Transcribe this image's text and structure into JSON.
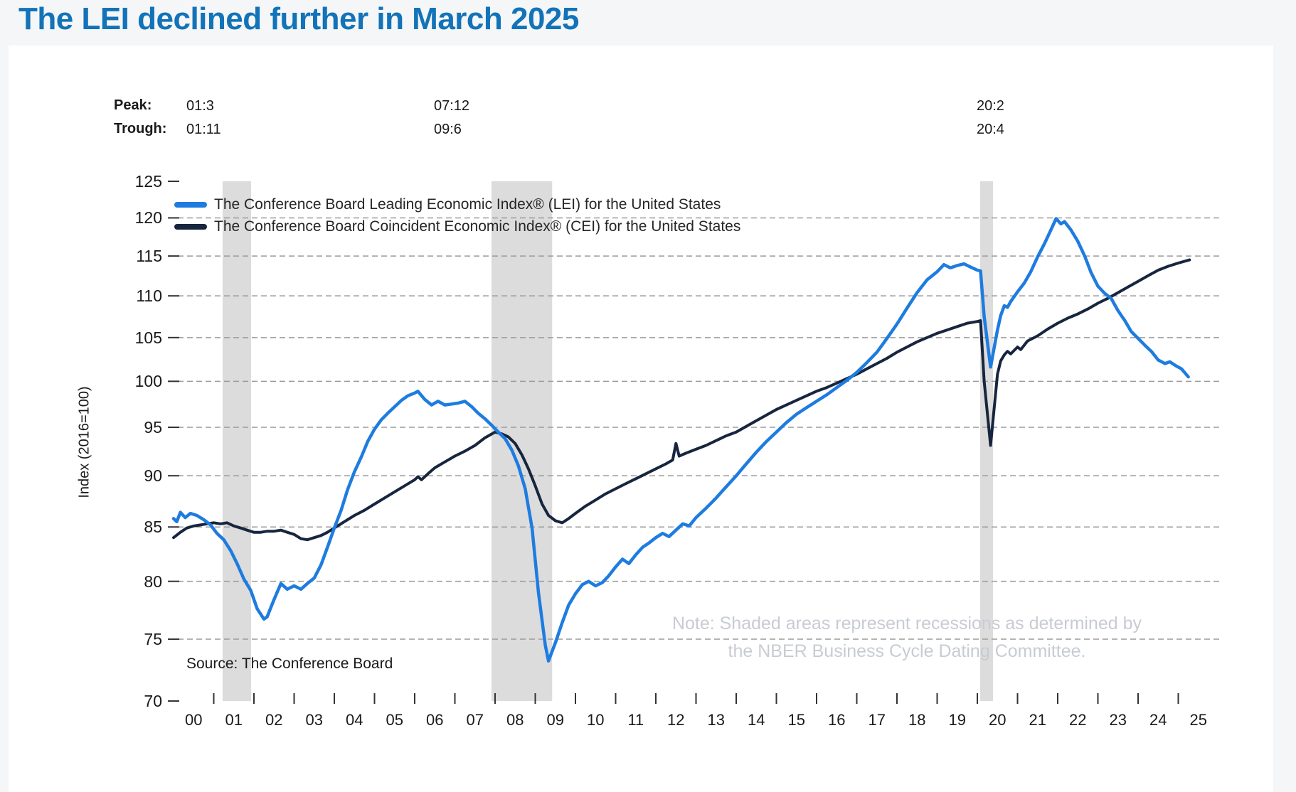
{
  "title": {
    "text": "The LEI declined further in March 2025"
  },
  "annotations": {
    "peak_label": "Peak:",
    "trough_label": "Trough:",
    "columns": [
      {
        "peak": "01:3",
        "trough": "01:11"
      },
      {
        "peak": "07:12",
        "trough": "09:6"
      },
      {
        "peak": "20:2",
        "trough": "20:4"
      }
    ]
  },
  "legend": [
    {
      "name": "lei",
      "label": "The Conference Board Leading Economic Index® (LEI) for the United States"
    },
    {
      "name": "cei",
      "label": "The Conference Board Coincident Economic Index® (CEI) for the United States"
    }
  ],
  "axis": {
    "y_title": "Index (2016=100)"
  },
  "source": {
    "text": "Source: The Conference Board"
  },
  "note": {
    "line1": "Note: Shaded areas represent recessions as determined by",
    "line2": "the NBER Business Cycle Dating Committee."
  },
  "colors": {
    "title": "#1273b8",
    "lei": "#1e7ce0",
    "cei": "#17263e",
    "recession_band": "#dcdcdc",
    "gridline": "#9b9b9b",
    "tick": "#333333",
    "note_text": "#c8ccd2"
  },
  "chart_data": {
    "type": "line",
    "x_label_unit": "year (2000-2025)",
    "ylim": [
      70,
      125
    ],
    "y_scale": "log",
    "grid": "dashed-horizontal",
    "legend_position": "top-left-inside",
    "y_ticks": [
      125,
      120,
      115,
      110,
      105,
      100,
      95,
      90,
      85,
      80,
      75,
      70
    ],
    "gridline_values": [
      120,
      115,
      110,
      105,
      100,
      95,
      90,
      85,
      80,
      75
    ],
    "x_tick_labels": [
      "00",
      "01",
      "02",
      "03",
      "04",
      "05",
      "06",
      "07",
      "08",
      "09",
      "10",
      "11",
      "12",
      "13",
      "14",
      "15",
      "16",
      "17",
      "18",
      "19",
      "20",
      "21",
      "22",
      "23",
      "24",
      "25"
    ],
    "recessions": [
      [
        2001.22,
        2001.93
      ],
      [
        2007.91,
        2009.42
      ],
      [
        2020.07,
        2020.39
      ]
    ],
    "series": [
      {
        "name": "CEI",
        "color_key": "cei",
        "points": [
          [
            2000.0,
            84.0
          ],
          [
            2000.17,
            84.5
          ],
          [
            2000.33,
            84.9
          ],
          [
            2000.5,
            85.1
          ],
          [
            2000.67,
            85.2
          ],
          [
            2000.83,
            85.3
          ],
          [
            2001.0,
            85.4
          ],
          [
            2001.17,
            85.3
          ],
          [
            2001.33,
            85.4
          ],
          [
            2001.5,
            85.1
          ],
          [
            2001.67,
            84.9
          ],
          [
            2001.83,
            84.7
          ],
          [
            2002.0,
            84.5
          ],
          [
            2002.17,
            84.5
          ],
          [
            2002.33,
            84.6
          ],
          [
            2002.5,
            84.6
          ],
          [
            2002.67,
            84.7
          ],
          [
            2002.83,
            84.5
          ],
          [
            2003.0,
            84.3
          ],
          [
            2003.17,
            83.9
          ],
          [
            2003.33,
            83.8
          ],
          [
            2003.5,
            84.0
          ],
          [
            2003.67,
            84.2
          ],
          [
            2003.83,
            84.5
          ],
          [
            2004.0,
            84.9
          ],
          [
            2004.25,
            85.5
          ],
          [
            2004.5,
            86.1
          ],
          [
            2004.75,
            86.6
          ],
          [
            2005.0,
            87.2
          ],
          [
            2005.25,
            87.8
          ],
          [
            2005.5,
            88.4
          ],
          [
            2005.75,
            89.0
          ],
          [
            2006.0,
            89.6
          ],
          [
            2006.08,
            89.9
          ],
          [
            2006.17,
            89.6
          ],
          [
            2006.33,
            90.2
          ],
          [
            2006.5,
            90.8
          ],
          [
            2006.75,
            91.4
          ],
          [
            2007.0,
            92.0
          ],
          [
            2007.25,
            92.5
          ],
          [
            2007.5,
            93.1
          ],
          [
            2007.75,
            93.9
          ],
          [
            2008.0,
            94.5
          ],
          [
            2008.17,
            94.3
          ],
          [
            2008.33,
            94.0
          ],
          [
            2008.5,
            93.3
          ],
          [
            2008.67,
            92.1
          ],
          [
            2008.83,
            90.7
          ],
          [
            2009.0,
            89.0
          ],
          [
            2009.17,
            87.2
          ],
          [
            2009.33,
            86.1
          ],
          [
            2009.5,
            85.6
          ],
          [
            2009.67,
            85.4
          ],
          [
            2009.83,
            85.8
          ],
          [
            2010.0,
            86.3
          ],
          [
            2010.25,
            87.0
          ],
          [
            2010.5,
            87.6
          ],
          [
            2010.75,
            88.2
          ],
          [
            2011.0,
            88.7
          ],
          [
            2011.25,
            89.2
          ],
          [
            2011.5,
            89.7
          ],
          [
            2011.75,
            90.2
          ],
          [
            2012.0,
            90.7
          ],
          [
            2012.25,
            91.2
          ],
          [
            2012.42,
            91.6
          ],
          [
            2012.5,
            93.3
          ],
          [
            2012.58,
            92.0
          ],
          [
            2012.75,
            92.3
          ],
          [
            2013.0,
            92.7
          ],
          [
            2013.25,
            93.1
          ],
          [
            2013.5,
            93.6
          ],
          [
            2013.75,
            94.1
          ],
          [
            2014.0,
            94.5
          ],
          [
            2014.25,
            95.1
          ],
          [
            2014.5,
            95.7
          ],
          [
            2014.75,
            96.3
          ],
          [
            2015.0,
            96.9
          ],
          [
            2015.25,
            97.4
          ],
          [
            2015.5,
            97.9
          ],
          [
            2015.75,
            98.4
          ],
          [
            2016.0,
            98.9
          ],
          [
            2016.25,
            99.3
          ],
          [
            2016.5,
            99.8
          ],
          [
            2016.75,
            100.3
          ],
          [
            2017.0,
            100.8
          ],
          [
            2017.25,
            101.4
          ],
          [
            2017.5,
            102.0
          ],
          [
            2017.75,
            102.6
          ],
          [
            2018.0,
            103.3
          ],
          [
            2018.25,
            103.9
          ],
          [
            2018.5,
            104.5
          ],
          [
            2018.75,
            105.0
          ],
          [
            2019.0,
            105.5
          ],
          [
            2019.25,
            105.9
          ],
          [
            2019.5,
            106.3
          ],
          [
            2019.75,
            106.7
          ],
          [
            2020.0,
            106.9
          ],
          [
            2020.08,
            107.0
          ],
          [
            2020.17,
            100.0
          ],
          [
            2020.33,
            93.1
          ],
          [
            2020.5,
            100.8
          ],
          [
            2020.58,
            102.3
          ],
          [
            2020.67,
            103.0
          ],
          [
            2020.75,
            103.4
          ],
          [
            2020.83,
            103.1
          ],
          [
            2021.0,
            103.9
          ],
          [
            2021.08,
            103.6
          ],
          [
            2021.25,
            104.6
          ],
          [
            2021.5,
            105.2
          ],
          [
            2021.75,
            106.0
          ],
          [
            2022.0,
            106.7
          ],
          [
            2022.25,
            107.3
          ],
          [
            2022.5,
            107.8
          ],
          [
            2022.75,
            108.4
          ],
          [
            2023.0,
            109.1
          ],
          [
            2023.25,
            109.7
          ],
          [
            2023.5,
            110.4
          ],
          [
            2023.75,
            111.1
          ],
          [
            2024.0,
            111.8
          ],
          [
            2024.25,
            112.5
          ],
          [
            2024.5,
            113.2
          ],
          [
            2024.75,
            113.7
          ],
          [
            2025.0,
            114.1
          ],
          [
            2025.28,
            114.5
          ]
        ]
      },
      {
        "name": "LEI",
        "color_key": "lei",
        "points": [
          [
            2000.0,
            85.8
          ],
          [
            2000.08,
            85.5
          ],
          [
            2000.17,
            86.4
          ],
          [
            2000.29,
            85.9
          ],
          [
            2000.42,
            86.3
          ],
          [
            2000.58,
            86.1
          ],
          [
            2000.75,
            85.7
          ],
          [
            2000.92,
            85.2
          ],
          [
            2001.08,
            84.4
          ],
          [
            2001.25,
            83.8
          ],
          [
            2001.42,
            82.8
          ],
          [
            2001.58,
            81.6
          ],
          [
            2001.75,
            80.2
          ],
          [
            2001.92,
            79.2
          ],
          [
            2002.08,
            77.6
          ],
          [
            2002.25,
            76.7
          ],
          [
            2002.33,
            76.9
          ],
          [
            2002.5,
            78.4
          ],
          [
            2002.67,
            79.8
          ],
          [
            2002.83,
            79.3
          ],
          [
            2003.0,
            79.6
          ],
          [
            2003.17,
            79.3
          ],
          [
            2003.33,
            79.8
          ],
          [
            2003.5,
            80.3
          ],
          [
            2003.67,
            81.5
          ],
          [
            2003.83,
            83.1
          ],
          [
            2004.0,
            84.9
          ],
          [
            2004.17,
            86.6
          ],
          [
            2004.33,
            88.6
          ],
          [
            2004.5,
            90.4
          ],
          [
            2004.67,
            91.9
          ],
          [
            2004.83,
            93.5
          ],
          [
            2005.0,
            94.8
          ],
          [
            2005.17,
            95.8
          ],
          [
            2005.33,
            96.5
          ],
          [
            2005.5,
            97.2
          ],
          [
            2005.67,
            97.9
          ],
          [
            2005.83,
            98.4
          ],
          [
            2006.0,
            98.7
          ],
          [
            2006.08,
            98.9
          ],
          [
            2006.25,
            98.0
          ],
          [
            2006.42,
            97.4
          ],
          [
            2006.58,
            97.8
          ],
          [
            2006.75,
            97.4
          ],
          [
            2006.92,
            97.5
          ],
          [
            2007.08,
            97.6
          ],
          [
            2007.25,
            97.8
          ],
          [
            2007.42,
            97.2
          ],
          [
            2007.58,
            96.5
          ],
          [
            2007.75,
            95.9
          ],
          [
            2007.92,
            95.2
          ],
          [
            2008.08,
            94.5
          ],
          [
            2008.25,
            93.8
          ],
          [
            2008.42,
            92.6
          ],
          [
            2008.58,
            91.0
          ],
          [
            2008.75,
            88.7
          ],
          [
            2008.92,
            84.9
          ],
          [
            2009.08,
            79.0
          ],
          [
            2009.25,
            74.5
          ],
          [
            2009.33,
            73.2
          ],
          [
            2009.5,
            74.7
          ],
          [
            2009.67,
            76.4
          ],
          [
            2009.83,
            77.9
          ],
          [
            2010.0,
            78.9
          ],
          [
            2010.17,
            79.7
          ],
          [
            2010.33,
            80.0
          ],
          [
            2010.5,
            79.6
          ],
          [
            2010.67,
            79.9
          ],
          [
            2010.83,
            80.5
          ],
          [
            2011.0,
            81.3
          ],
          [
            2011.17,
            82.0
          ],
          [
            2011.33,
            81.6
          ],
          [
            2011.5,
            82.4
          ],
          [
            2011.67,
            83.1
          ],
          [
            2011.83,
            83.5
          ],
          [
            2012.0,
            84.0
          ],
          [
            2012.17,
            84.4
          ],
          [
            2012.33,
            84.1
          ],
          [
            2012.5,
            84.7
          ],
          [
            2012.67,
            85.3
          ],
          [
            2012.83,
            85.1
          ],
          [
            2013.0,
            85.9
          ],
          [
            2013.25,
            86.8
          ],
          [
            2013.5,
            87.8
          ],
          [
            2013.75,
            88.9
          ],
          [
            2014.0,
            90.0
          ],
          [
            2014.25,
            91.2
          ],
          [
            2014.5,
            92.4
          ],
          [
            2014.75,
            93.5
          ],
          [
            2015.0,
            94.5
          ],
          [
            2015.25,
            95.5
          ],
          [
            2015.5,
            96.4
          ],
          [
            2015.75,
            97.1
          ],
          [
            2016.0,
            97.8
          ],
          [
            2016.25,
            98.5
          ],
          [
            2016.5,
            99.3
          ],
          [
            2016.75,
            100.1
          ],
          [
            2017.0,
            101.0
          ],
          [
            2017.25,
            102.1
          ],
          [
            2017.5,
            103.3
          ],
          [
            2017.75,
            104.9
          ],
          [
            2018.0,
            106.6
          ],
          [
            2018.25,
            108.5
          ],
          [
            2018.5,
            110.4
          ],
          [
            2018.75,
            112.0
          ],
          [
            2019.0,
            113.0
          ],
          [
            2019.17,
            113.9
          ],
          [
            2019.33,
            113.5
          ],
          [
            2019.5,
            113.8
          ],
          [
            2019.67,
            114.0
          ],
          [
            2019.83,
            113.6
          ],
          [
            2020.0,
            113.2
          ],
          [
            2020.08,
            113.1
          ],
          [
            2020.17,
            107.5
          ],
          [
            2020.33,
            101.6
          ],
          [
            2020.5,
            105.9
          ],
          [
            2020.58,
            107.6
          ],
          [
            2020.67,
            108.8
          ],
          [
            2020.75,
            108.6
          ],
          [
            2020.83,
            109.3
          ],
          [
            2021.0,
            110.5
          ],
          [
            2021.17,
            111.6
          ],
          [
            2021.33,
            113.0
          ],
          [
            2021.5,
            114.9
          ],
          [
            2021.67,
            116.6
          ],
          [
            2021.83,
            118.4
          ],
          [
            2021.96,
            119.9
          ],
          [
            2022.08,
            119.2
          ],
          [
            2022.17,
            119.5
          ],
          [
            2022.33,
            118.4
          ],
          [
            2022.5,
            116.9
          ],
          [
            2022.67,
            115.0
          ],
          [
            2022.83,
            112.9
          ],
          [
            2023.0,
            111.2
          ],
          [
            2023.17,
            110.3
          ],
          [
            2023.33,
            109.7
          ],
          [
            2023.5,
            108.2
          ],
          [
            2023.67,
            107.0
          ],
          [
            2023.83,
            105.7
          ],
          [
            2024.0,
            104.9
          ],
          [
            2024.17,
            104.1
          ],
          [
            2024.33,
            103.4
          ],
          [
            2024.5,
            102.4
          ],
          [
            2024.67,
            102.0
          ],
          [
            2024.79,
            102.2
          ],
          [
            2024.92,
            101.8
          ],
          [
            2025.08,
            101.4
          ],
          [
            2025.25,
            100.5
          ]
        ]
      }
    ]
  }
}
